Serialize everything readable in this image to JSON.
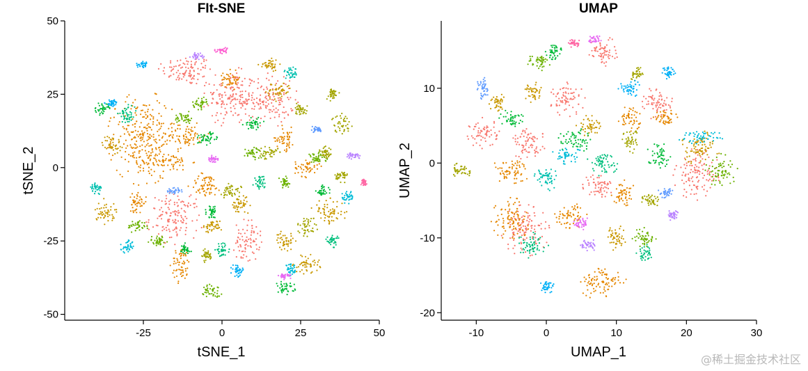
{
  "chart_data": [
    {
      "type": "scatter",
      "title": "FIt-SNE",
      "xlabel": "tSNE_1",
      "ylabel": "tSNE_2",
      "xlim": [
        -50,
        50
      ],
      "ylim": [
        -52,
        50
      ],
      "xticks": [
        -25,
        0,
        25,
        50
      ],
      "yticks": [
        -50,
        -25,
        0,
        25,
        50
      ],
      "grid": false,
      "legend": "none",
      "clusters": [
        {
          "cx": -11,
          "cy": 33,
          "rx": 8,
          "ry": 5,
          "color": "#F8766D"
        },
        {
          "cx": 3,
          "cy": 24,
          "rx": 8,
          "ry": 9,
          "color": "#F8766D"
        },
        {
          "cx": 15,
          "cy": 23,
          "rx": 8,
          "ry": 8,
          "color": "#F8766D"
        },
        {
          "cx": -15,
          "cy": -17,
          "rx": 8,
          "ry": 8,
          "color": "#F8766D"
        },
        {
          "cx": 8,
          "cy": -25,
          "rx": 4,
          "ry": 7,
          "color": "#F8766D"
        },
        {
          "cx": -25,
          "cy": 10,
          "rx": 10,
          "ry": 14,
          "color": "#E58700"
        },
        {
          "cx": -11,
          "cy": 11,
          "rx": 6,
          "ry": 4,
          "color": "#E58700"
        },
        {
          "cx": -18,
          "cy": 2,
          "rx": 8,
          "ry": 3,
          "color": "#E58700"
        },
        {
          "cx": -5,
          "cy": -6,
          "rx": 5,
          "ry": 4,
          "color": "#E58700"
        },
        {
          "cx": -13,
          "cy": -33,
          "rx": 3,
          "ry": 6,
          "color": "#E58700"
        },
        {
          "cx": 20,
          "cy": 10,
          "rx": 3,
          "ry": 4,
          "color": "#E58700"
        },
        {
          "cx": 27,
          "cy": 0,
          "rx": 4,
          "ry": 3,
          "color": "#E58700"
        },
        {
          "cx": 3,
          "cy": 30,
          "rx": 3,
          "ry": 3,
          "color": "#E58700"
        },
        {
          "cx": -27,
          "cy": -12,
          "rx": 3,
          "ry": 3,
          "color": "#E58700"
        },
        {
          "cx": 34,
          "cy": -15,
          "rx": 5,
          "ry": 4,
          "color": "#C99800"
        },
        {
          "cx": 18,
          "cy": 26,
          "rx": 4,
          "ry": 3,
          "color": "#C99800"
        },
        {
          "cx": 15,
          "cy": 35,
          "rx": 3,
          "ry": 2,
          "color": "#C99800"
        },
        {
          "cx": -37,
          "cy": -15,
          "rx": 3,
          "ry": 4,
          "color": "#C99800"
        },
        {
          "cx": 6,
          "cy": -13,
          "rx": 3,
          "ry": 3,
          "color": "#C99800"
        },
        {
          "cx": -3,
          "cy": -20,
          "rx": 3,
          "ry": 2,
          "color": "#C99800"
        },
        {
          "cx": 20,
          "cy": -25,
          "rx": 3,
          "ry": 3,
          "color": "#C99800"
        },
        {
          "cx": 27,
          "cy": -33,
          "rx": 4,
          "ry": 3,
          "color": "#C99800"
        },
        {
          "cx": -35,
          "cy": 8,
          "rx": 3,
          "ry": 3,
          "color": "#C99800"
        },
        {
          "cx": 38,
          "cy": 15,
          "rx": 3,
          "ry": 3,
          "color": "#A3A500"
        },
        {
          "cx": 33,
          "cy": 5,
          "rx": 2,
          "ry": 3,
          "color": "#A3A500"
        },
        {
          "cx": 38,
          "cy": -3,
          "rx": 2,
          "ry": 2,
          "color": "#A3A500"
        },
        {
          "cx": 15,
          "cy": 5,
          "rx": 3,
          "ry": 2,
          "color": "#A3A500"
        },
        {
          "cx": 3,
          "cy": -8,
          "rx": 3,
          "ry": 3,
          "color": "#A3A500"
        },
        {
          "cx": 27,
          "cy": -20,
          "rx": 3,
          "ry": 3,
          "color": "#A3A500"
        },
        {
          "cx": 25,
          "cy": 20,
          "rx": 2,
          "ry": 2,
          "color": "#A3A500"
        },
        {
          "cx": 35,
          "cy": 25,
          "rx": 2,
          "ry": 2,
          "color": "#A3A500"
        },
        {
          "cx": -5,
          "cy": -30,
          "rx": 2,
          "ry": 2,
          "color": "#A3A500"
        },
        {
          "cx": -3,
          "cy": -42,
          "rx": 3,
          "ry": 2,
          "color": "#6BB100"
        },
        {
          "cx": -20,
          "cy": -25,
          "rx": 3,
          "ry": 2,
          "color": "#6BB100"
        },
        {
          "cx": -27,
          "cy": -20,
          "rx": 3,
          "ry": 2,
          "color": "#6BB100"
        },
        {
          "cx": -12,
          "cy": 17,
          "rx": 3,
          "ry": 2,
          "color": "#6BB100"
        },
        {
          "cx": -7,
          "cy": 22,
          "rx": 2,
          "ry": 2,
          "color": "#6BB100"
        },
        {
          "cx": 30,
          "cy": 3,
          "rx": 3,
          "ry": 2,
          "color": "#6BB100"
        },
        {
          "cx": 20,
          "cy": -5,
          "rx": 2,
          "ry": 2,
          "color": "#6BB100"
        },
        {
          "cx": 10,
          "cy": 5,
          "rx": 3,
          "ry": 2,
          "color": "#6BB100"
        },
        {
          "cx": -38,
          "cy": 20,
          "rx": 2,
          "ry": 2,
          "color": "#00BA38"
        },
        {
          "cx": -5,
          "cy": 10,
          "rx": 4,
          "ry": 2,
          "color": "#00BA38"
        },
        {
          "cx": 10,
          "cy": 15,
          "rx": 3,
          "ry": 2,
          "color": "#00BA38"
        },
        {
          "cx": 20,
          "cy": -41,
          "rx": 3,
          "ry": 2,
          "color": "#00BA38"
        },
        {
          "cx": -3,
          "cy": -15,
          "rx": 2,
          "ry": 2,
          "color": "#00BA38"
        },
        {
          "cx": -12,
          "cy": -28,
          "rx": 2,
          "ry": 2,
          "color": "#00BA38"
        },
        {
          "cx": 32,
          "cy": -8,
          "rx": 2,
          "ry": 2,
          "color": "#00BA38"
        },
        {
          "cx": -30,
          "cy": 18,
          "rx": 3,
          "ry": 3,
          "color": "#00BF7D"
        },
        {
          "cx": 35,
          "cy": -25,
          "rx": 2,
          "ry": 2,
          "color": "#00BF7D"
        },
        {
          "cx": 0,
          "cy": -28,
          "rx": 2,
          "ry": 2,
          "color": "#00BF7D"
        },
        {
          "cx": 12,
          "cy": -5,
          "rx": 2,
          "ry": 2,
          "color": "#00BF7D"
        },
        {
          "cx": -40,
          "cy": -7,
          "rx": 2,
          "ry": 2,
          "color": "#00C0AF"
        },
        {
          "cx": 22,
          "cy": 32,
          "rx": 2,
          "ry": 2,
          "color": "#00C0AF"
        },
        {
          "cx": 22,
          "cy": -35,
          "rx": 2,
          "ry": 2,
          "color": "#00BCD8"
        },
        {
          "cx": -30,
          "cy": -27,
          "rx": 2,
          "ry": 2,
          "color": "#00BCD8"
        },
        {
          "cx": 40,
          "cy": -10,
          "rx": 2,
          "ry": 2,
          "color": "#00BCD8"
        },
        {
          "cx": -25,
          "cy": 35,
          "rx": 2,
          "ry": 1,
          "color": "#00B0F6"
        },
        {
          "cx": 5,
          "cy": -35,
          "rx": 2,
          "ry": 2,
          "color": "#00B0F6"
        },
        {
          "cx": -35,
          "cy": 22,
          "rx": 2,
          "ry": 1,
          "color": "#00B0F6"
        },
        {
          "cx": 30,
          "cy": 13,
          "rx": 2,
          "ry": 1,
          "color": "#619CFF"
        },
        {
          "cx": -15,
          "cy": -8,
          "rx": 2,
          "ry": 1,
          "color": "#619CFF"
        },
        {
          "cx": -8,
          "cy": 38,
          "rx": 2,
          "ry": 1,
          "color": "#B983FF"
        },
        {
          "cx": 42,
          "cy": 4,
          "rx": 2,
          "ry": 1,
          "color": "#B983FF"
        },
        {
          "cx": -3,
          "cy": 3,
          "rx": 2,
          "ry": 1,
          "color": "#E76BF3"
        },
        {
          "cx": 20,
          "cy": -37,
          "rx": 2,
          "ry": 1,
          "color": "#E76BF3"
        },
        {
          "cx": 0,
          "cy": 40,
          "rx": 2,
          "ry": 1,
          "color": "#FD61D1"
        },
        {
          "cx": 45,
          "cy": -5,
          "rx": 1,
          "ry": 1,
          "color": "#FF67A4"
        }
      ]
    },
    {
      "type": "scatter",
      "title": "UMAP",
      "xlabel": "UMAP_1",
      "ylabel": "UMAP_2",
      "xlim": [
        -15,
        30
      ],
      "ylim": [
        -21,
        19
      ],
      "xticks": [
        -10,
        0,
        10,
        20,
        30
      ],
      "yticks": [
        -20,
        -10,
        0,
        10
      ],
      "grid": false,
      "legend": "none",
      "clusters": [
        {
          "cx": 8,
          "cy": 15,
          "rx": 2,
          "ry": 1.8,
          "color": "#F8766D"
        },
        {
          "cx": 3,
          "cy": 8.5,
          "rx": 2.2,
          "ry": 2,
          "color": "#F8766D"
        },
        {
          "cx": 16,
          "cy": 8,
          "rx": 2,
          "ry": 2,
          "color": "#F8766D"
        },
        {
          "cx": -9,
          "cy": 4,
          "rx": 2,
          "ry": 1.8,
          "color": "#F8766D"
        },
        {
          "cx": -2.5,
          "cy": 2.5,
          "rx": 2.2,
          "ry": 2,
          "color": "#F8766D"
        },
        {
          "cx": 21.5,
          "cy": -1.5,
          "rx": 3,
          "ry": 3,
          "color": "#F8766D"
        },
        {
          "cx": -3,
          "cy": -9,
          "rx": 3,
          "ry": 3,
          "color": "#F8766D"
        },
        {
          "cx": 7.5,
          "cy": -3,
          "rx": 2,
          "ry": 1.5,
          "color": "#F8766D"
        },
        {
          "cx": 8,
          "cy": -16,
          "rx": 3,
          "ry": 2,
          "color": "#E58700"
        },
        {
          "cx": -5,
          "cy": -1,
          "rx": 2.5,
          "ry": 1.5,
          "color": "#E58700"
        },
        {
          "cx": -5,
          "cy": -7.5,
          "rx": 2.5,
          "ry": 2.5,
          "color": "#E58700"
        },
        {
          "cx": 3.5,
          "cy": -7,
          "rx": 2,
          "ry": 1.5,
          "color": "#E58700"
        },
        {
          "cx": 11,
          "cy": -4,
          "rx": 1.5,
          "ry": 1.5,
          "color": "#E58700"
        },
        {
          "cx": 12,
          "cy": 6,
          "rx": 1.5,
          "ry": 1.5,
          "color": "#E58700"
        },
        {
          "cx": 17,
          "cy": 6,
          "rx": 1.5,
          "ry": 1,
          "color": "#E58700"
        },
        {
          "cx": -2,
          "cy": 9.5,
          "rx": 1.2,
          "ry": 1.2,
          "color": "#C99800"
        },
        {
          "cx": 22,
          "cy": 2,
          "rx": 2.5,
          "ry": 2,
          "color": "#C99800"
        },
        {
          "cx": 10,
          "cy": -10,
          "rx": 1.2,
          "ry": 1.5,
          "color": "#C99800"
        },
        {
          "cx": 6,
          "cy": 5,
          "rx": 1.5,
          "ry": 1.2,
          "color": "#C99800"
        },
        {
          "cx": -7,
          "cy": 8,
          "rx": 1,
          "ry": 1.2,
          "color": "#C99800"
        },
        {
          "cx": -12,
          "cy": -1,
          "rx": 1.2,
          "ry": 1,
          "color": "#A3A500"
        },
        {
          "cx": 13,
          "cy": 12,
          "rx": 1,
          "ry": 1,
          "color": "#A3A500"
        },
        {
          "cx": 12,
          "cy": 3,
          "rx": 1,
          "ry": 1.5,
          "color": "#A3A500"
        },
        {
          "cx": 15,
          "cy": -5,
          "rx": 1.2,
          "ry": 1,
          "color": "#A3A500"
        },
        {
          "cx": -1,
          "cy": 13.5,
          "rx": 1.5,
          "ry": 1,
          "color": "#6BB100"
        },
        {
          "cx": 14,
          "cy": -10,
          "rx": 1.5,
          "ry": 1.2,
          "color": "#6BB100"
        },
        {
          "cx": 25,
          "cy": -1,
          "rx": 2,
          "ry": 2,
          "color": "#6BB100"
        },
        {
          "cx": 4,
          "cy": 3,
          "rx": 2,
          "ry": 1.5,
          "color": "#00BA38"
        },
        {
          "cx": 1,
          "cy": 15,
          "rx": 1,
          "ry": 1,
          "color": "#00BA38"
        },
        {
          "cx": -5,
          "cy": 6,
          "rx": 1.5,
          "ry": 1,
          "color": "#00BA38"
        },
        {
          "cx": 16,
          "cy": 1,
          "rx": 1.5,
          "ry": 1.5,
          "color": "#00BA38"
        },
        {
          "cx": -2,
          "cy": -11,
          "rx": 2,
          "ry": 1.5,
          "color": "#00BF7D"
        },
        {
          "cx": 14,
          "cy": -12,
          "rx": 1,
          "ry": 1,
          "color": "#00BF7D"
        },
        {
          "cx": 8,
          "cy": 0,
          "rx": 2,
          "ry": 1.5,
          "color": "#00BF7D"
        },
        {
          "cx": 0,
          "cy": -2,
          "rx": 1.5,
          "ry": 1.5,
          "color": "#00C0AF"
        },
        {
          "cx": 22,
          "cy": 3.5,
          "rx": 3,
          "ry": 0.8,
          "color": "#00BCD8"
        },
        {
          "cx": 3,
          "cy": 1,
          "rx": 2,
          "ry": 1,
          "color": "#00BCD8"
        },
        {
          "cx": 0,
          "cy": -16.5,
          "rx": 1,
          "ry": 0.8,
          "color": "#00B0F6"
        },
        {
          "cx": 12,
          "cy": 10,
          "rx": 1.5,
          "ry": 1,
          "color": "#00B0F6"
        },
        {
          "cx": 17.5,
          "cy": 12,
          "rx": 1,
          "ry": 0.8,
          "color": "#00B0F6"
        },
        {
          "cx": -9,
          "cy": 10,
          "rx": 0.8,
          "ry": 1.5,
          "color": "#619CFF"
        },
        {
          "cx": 17,
          "cy": -4,
          "rx": 1,
          "ry": 0.6,
          "color": "#619CFF"
        },
        {
          "cx": 6,
          "cy": -11,
          "rx": 1,
          "ry": 0.8,
          "color": "#B983FF"
        },
        {
          "cx": 18,
          "cy": -7,
          "rx": 0.8,
          "ry": 0.6,
          "color": "#B983FF"
        },
        {
          "cx": 5,
          "cy": -8,
          "rx": 1,
          "ry": 0.8,
          "color": "#E76BF3"
        },
        {
          "cx": 7,
          "cy": 16.5,
          "rx": 1,
          "ry": 0.6,
          "color": "#E76BF3"
        },
        {
          "cx": 4,
          "cy": 16,
          "rx": 0.8,
          "ry": 0.5,
          "color": "#FF67A4"
        }
      ]
    }
  ],
  "watermark": "@稀土掘金技术社区"
}
